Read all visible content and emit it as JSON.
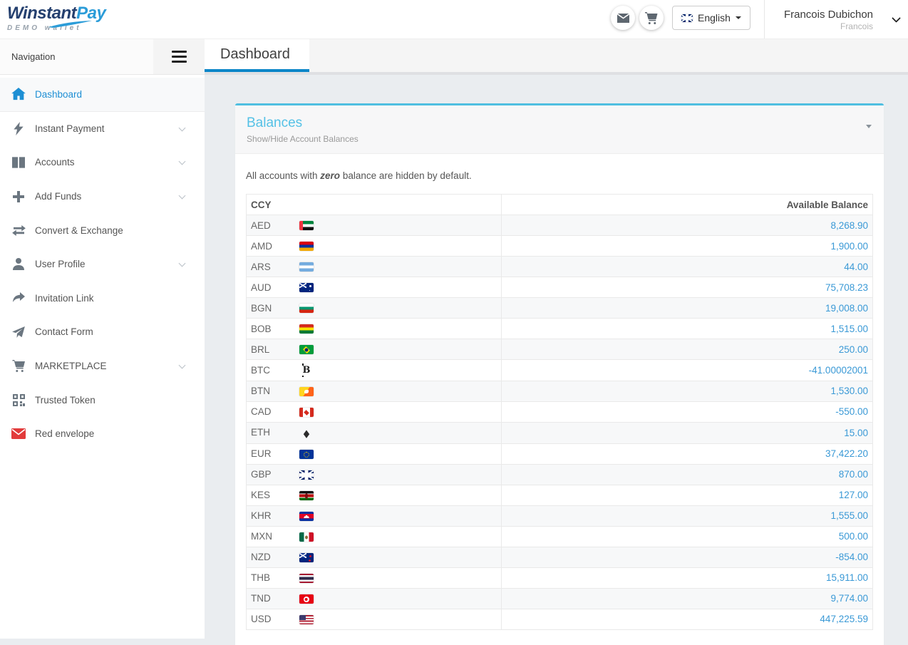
{
  "header": {
    "logo": {
      "brand_primary": "Winstant",
      "brand_secondary": "Pay",
      "tagline": "DEMO wallet"
    },
    "language": {
      "label": "English"
    },
    "user": {
      "name": "Francois Dubichon",
      "subtitle": "Francois"
    }
  },
  "nav": {
    "sidebar_title": "Navigation",
    "active_tab": "Dashboard"
  },
  "sidebar": {
    "items": [
      {
        "label": "Dashboard",
        "icon": "home-icon",
        "active": true,
        "expandable": false
      },
      {
        "label": "Instant Payment",
        "icon": "bolt-icon",
        "active": false,
        "expandable": true
      },
      {
        "label": "Accounts",
        "icon": "columns-icon",
        "active": false,
        "expandable": true
      },
      {
        "label": "Add Funds",
        "icon": "plus-icon",
        "active": false,
        "expandable": true
      },
      {
        "label": "Convert & Exchange",
        "icon": "exchange-icon",
        "active": false,
        "expandable": false
      },
      {
        "label": "User Profile",
        "icon": "user-icon",
        "active": false,
        "expandable": true
      },
      {
        "label": "Invitation Link",
        "icon": "share-icon",
        "active": false,
        "expandable": false
      },
      {
        "label": "Contact Form",
        "icon": "paper-plane-icon",
        "active": false,
        "expandable": false
      },
      {
        "label": "MARKETPLACE",
        "icon": "cart-icon",
        "active": false,
        "expandable": true
      },
      {
        "label": "Trusted Token",
        "icon": "qrcode-icon",
        "active": false,
        "expandable": false
      },
      {
        "label": "Red envelope",
        "icon": "red-envelope-icon",
        "active": false,
        "expandable": false
      }
    ]
  },
  "panel": {
    "title": "Balances",
    "subtitle": "Show/Hide Account Balances",
    "note": {
      "prefix": "All accounts with ",
      "emphasis": "zero",
      "suffix": " balance are hidden by default."
    }
  },
  "table": {
    "columns": [
      "CCY",
      "Available Balance"
    ],
    "rows": [
      {
        "code": "AED",
        "flag": "ae",
        "balance": "8,268.90"
      },
      {
        "code": "AMD",
        "flag": "am",
        "balance": "1,900.00"
      },
      {
        "code": "ARS",
        "flag": "ar",
        "balance": "44.00"
      },
      {
        "code": "AUD",
        "flag": "au",
        "balance": "75,708.23"
      },
      {
        "code": "BGN",
        "flag": "bg",
        "balance": "19,008.00"
      },
      {
        "code": "BOB",
        "flag": "bo",
        "balance": "1,515.00"
      },
      {
        "code": "BRL",
        "flag": "br",
        "balance": "250.00"
      },
      {
        "code": "BTC",
        "flag": "btc",
        "balance": "-41.00002001"
      },
      {
        "code": "BTN",
        "flag": "bt",
        "balance": "1,530.00"
      },
      {
        "code": "CAD",
        "flag": "ca",
        "balance": "-550.00"
      },
      {
        "code": "ETH",
        "flag": "eth",
        "balance": "15.00"
      },
      {
        "code": "EUR",
        "flag": "eu",
        "balance": "37,422.20"
      },
      {
        "code": "GBP",
        "flag": "gb",
        "balance": "870.00"
      },
      {
        "code": "KES",
        "flag": "ke",
        "balance": "127.00"
      },
      {
        "code": "KHR",
        "flag": "kh",
        "balance": "1,555.00"
      },
      {
        "code": "MXN",
        "flag": "mx",
        "balance": "500.00"
      },
      {
        "code": "NZD",
        "flag": "nz",
        "balance": "-854.00"
      },
      {
        "code": "THB",
        "flag": "th",
        "balance": "15,911.00"
      },
      {
        "code": "TND",
        "flag": "tn",
        "balance": "9,774.00"
      },
      {
        "code": "USD",
        "flag": "us",
        "balance": "447,225.59"
      }
    ]
  },
  "colors": {
    "tab_accent": "#0b86c8",
    "panel_top_border": "#4fbfe0",
    "panel_title": "#54c1e6",
    "balance_link": "#3a99d6",
    "brand_navy": "#25406f",
    "brand_blue": "#2b9cd8",
    "red_envelope": "#e23b3b"
  }
}
